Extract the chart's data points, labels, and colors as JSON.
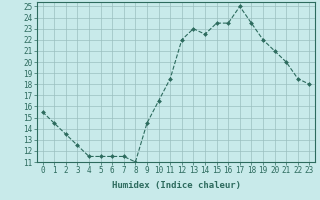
{
  "x": [
    0,
    1,
    2,
    3,
    4,
    5,
    6,
    7,
    8,
    9,
    10,
    11,
    12,
    13,
    14,
    15,
    16,
    17,
    18,
    19,
    20,
    21,
    22,
    23
  ],
  "y": [
    15.5,
    14.5,
    13.5,
    12.5,
    11.5,
    11.5,
    11.5,
    11.5,
    11.0,
    14.5,
    16.5,
    18.5,
    22.0,
    23.0,
    22.5,
    23.5,
    23.5,
    25.0,
    23.5,
    22.0,
    21.0,
    20.0,
    18.5,
    18.0
  ],
  "xlabel": "Humidex (Indice chaleur)",
  "ylabel": "",
  "xlim": [
    -0.5,
    23.5
  ],
  "ylim": [
    11,
    25.4
  ],
  "yticks": [
    11,
    12,
    13,
    14,
    15,
    16,
    17,
    18,
    19,
    20,
    21,
    22,
    23,
    24,
    25
  ],
  "xticks": [
    0,
    1,
    2,
    3,
    4,
    5,
    6,
    7,
    8,
    9,
    10,
    11,
    12,
    13,
    14,
    15,
    16,
    17,
    18,
    19,
    20,
    21,
    22,
    23
  ],
  "xtick_labels": [
    "0",
    "1",
    "2",
    "3",
    "4",
    "5",
    "6",
    "7",
    "8",
    "9",
    "10",
    "11",
    "12",
    "13",
    "14",
    "15",
    "16",
    "17",
    "18",
    "19",
    "20",
    "21",
    "22",
    "23"
  ],
  "line_color": "#2d6b5e",
  "marker": "D",
  "marker_size": 2.0,
  "background_color": "#c8eaea",
  "grid_color": "#9bbfbf",
  "label_color": "#2d6b5e",
  "tick_color": "#2d6b5e",
  "font_size_axis": 6.5,
  "font_size_tick": 5.5
}
